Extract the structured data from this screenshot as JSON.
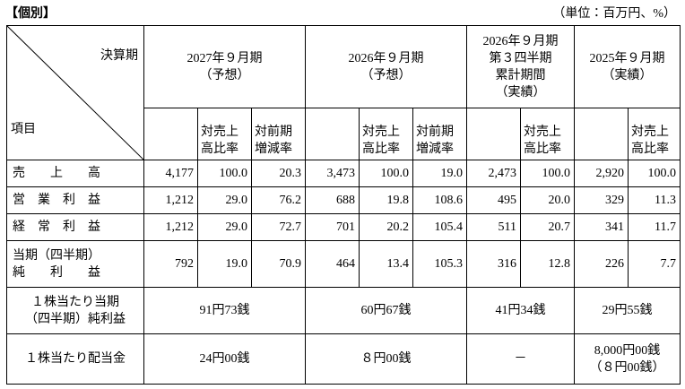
{
  "header": {
    "title": "【個別】",
    "unit": "（単位：百万円、%）"
  },
  "table": {
    "corner": {
      "period": "決算期",
      "item": "項目"
    },
    "periods": [
      {
        "lines": [
          "2027年９月期",
          "（予想）"
        ]
      },
      {
        "lines": [
          "2026年９月期",
          "（予想）"
        ]
      },
      {
        "lines": [
          "2026年９月期",
          "第３四半期",
          "累計期間",
          "（実績）"
        ]
      },
      {
        "lines": [
          "2025年９月期",
          "（実績）"
        ]
      }
    ],
    "subheaders": {
      "ratio": [
        "対売上",
        "高比率"
      ],
      "change": [
        "対前期",
        "増減率"
      ]
    },
    "rows": [
      {
        "label": [
          "売　　上　　高"
        ],
        "values": [
          "4,177",
          "100.0",
          "20.3",
          "3,473",
          "100.0",
          "19.0",
          "2,473",
          "100.0",
          "2,920",
          "100.0"
        ]
      },
      {
        "label": [
          "営　業　利　益"
        ],
        "values": [
          "1,212",
          "29.0",
          "76.2",
          "688",
          "19.8",
          "108.6",
          "495",
          "20.0",
          "329",
          "11.3"
        ]
      },
      {
        "label": [
          "経　常　利　益"
        ],
        "values": [
          "1,212",
          "29.0",
          "72.7",
          "701",
          "20.2",
          "105.4",
          "511",
          "20.7",
          "341",
          "11.7"
        ]
      },
      {
        "label": [
          "当期（四半期）",
          "純　　利　　益"
        ],
        "values": [
          "792",
          "19.0",
          "70.9",
          "464",
          "13.4",
          "105.3",
          "316",
          "12.8",
          "226",
          "7.7"
        ]
      }
    ],
    "per_share": [
      {
        "label": [
          "１株当たり当期",
          "（四半期）純利益"
        ],
        "values": [
          [
            "91円73銭"
          ],
          [
            "60円67銭"
          ],
          [
            "41円34銭"
          ],
          [
            "29円55銭"
          ]
        ]
      },
      {
        "label": [
          "１株当たり配当金"
        ],
        "values": [
          [
            "24円00銭"
          ],
          [
            "８円00銭"
          ],
          [
            "－"
          ],
          [
            "8,000円00銭",
            "（８円00銭）"
          ]
        ]
      }
    ]
  }
}
